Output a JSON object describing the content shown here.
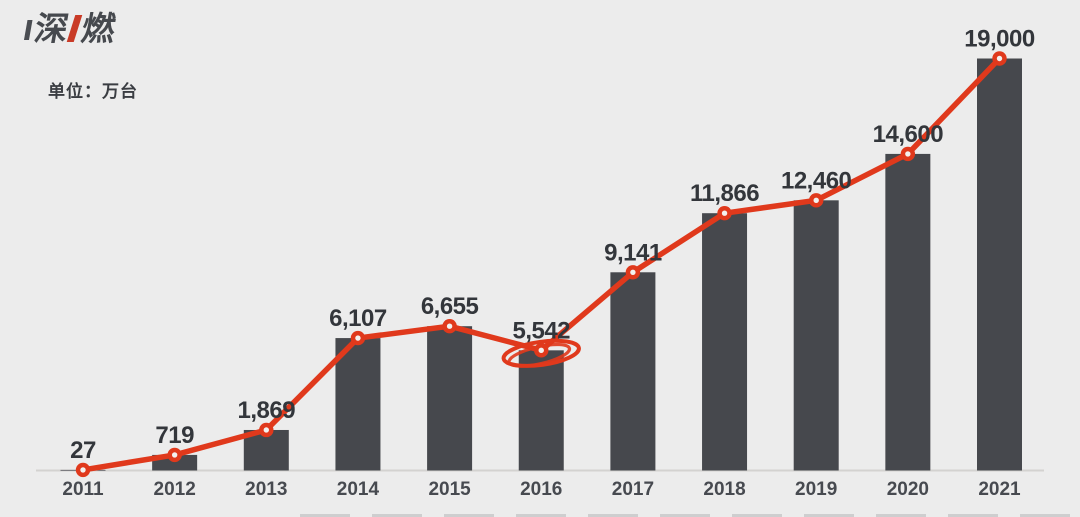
{
  "page": {
    "background": "#ececec"
  },
  "logo": {
    "char1": "深",
    "char2": "燃"
  },
  "unit_label": "单位：万台",
  "chart_data": {
    "type": "bar",
    "overlay": "line",
    "title": "",
    "unit": "万台",
    "categories": [
      "2011",
      "2012",
      "2013",
      "2014",
      "2015",
      "2016",
      "2017",
      "2018",
      "2019",
      "2020",
      "2021"
    ],
    "values": [
      27,
      719,
      1869,
      6107,
      6655,
      5542,
      9141,
      11866,
      12460,
      14600,
      19000
    ],
    "value_labels": [
      "27",
      "719",
      "1,869",
      "6,107",
      "6,655",
      "5,542",
      "9,141",
      "11,866",
      "12,460",
      "14,600",
      "19,000"
    ],
    "ylim": [
      0,
      19000
    ],
    "grid": false,
    "legend": "none",
    "xlabel": "",
    "ylabel": "",
    "annotation": {
      "shape": "hand-drawn-ellipse",
      "category": "2016",
      "purpose": "highlights the 2016 dip (5,542)"
    },
    "colors": {
      "bar": "#46484d",
      "line": "#e0391c",
      "marker_center": "#f3f1ef",
      "value_label": "#33363b",
      "year_label": "#474a50",
      "baseline": "#d3d2d0"
    }
  }
}
